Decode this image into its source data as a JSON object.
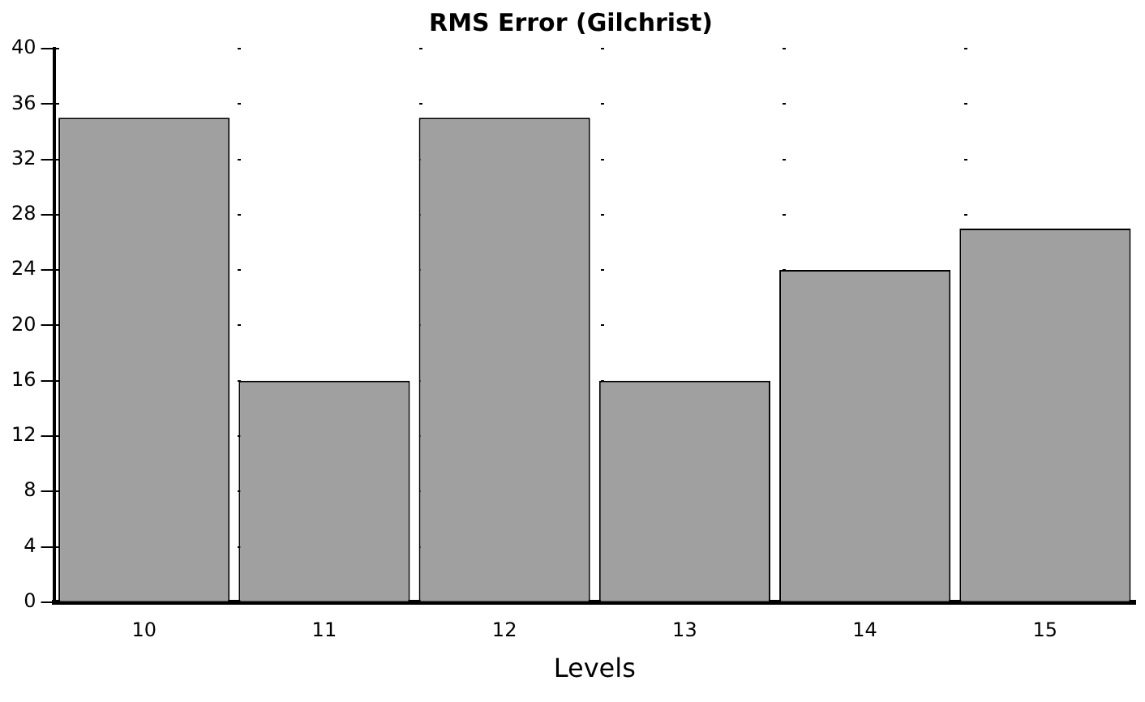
{
  "chart_data": {
    "type": "bar",
    "title": "RMS Error (Gilchrist)",
    "xlabel": "Levels",
    "categories": [
      "10",
      "11",
      "12",
      "13",
      "14",
      "15"
    ],
    "values": [
      35,
      16,
      35,
      16,
      24,
      27
    ],
    "color": "#a0a0a0",
    "ylim": [
      0,
      40
    ],
    "yticks": [
      0,
      4,
      8,
      12,
      16,
      20,
      24,
      28,
      32,
      36,
      40
    ],
    "grid": "y",
    "legend": false
  }
}
